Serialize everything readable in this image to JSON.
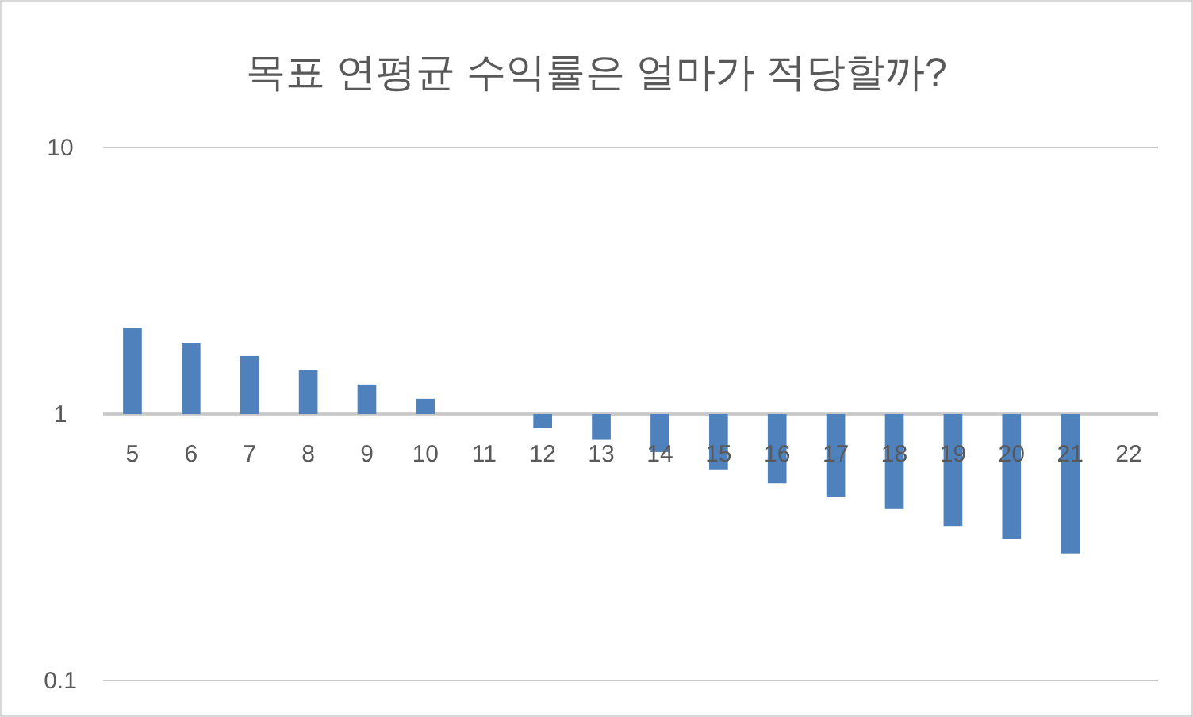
{
  "chart_data": {
    "type": "bar",
    "title": "목표 연평균 수익률은 얼마가 적당할까?",
    "categories": [
      "5",
      "6",
      "7",
      "8",
      "9",
      "10",
      "11",
      "12",
      "13",
      "14",
      "15",
      "16",
      "17",
      "18",
      "19",
      "20",
      "21",
      "22"
    ],
    "values": [
      1.11,
      0.84,
      0.65,
      0.46,
      0.29,
      0.14,
      null,
      -0.11,
      -0.2,
      -0.28,
      -0.38,
      -0.45,
      -0.51,
      -0.56,
      -0.62,
      -0.66,
      -0.7,
      null
    ],
    "base": [
      1,
      1,
      1,
      1,
      1,
      1,
      null,
      1,
      1,
      1,
      1,
      1,
      1,
      1,
      1,
      1,
      1,
      null
    ],
    "color": "#4f81bd",
    "log": true,
    "ylim": [
      0.1,
      10
    ],
    "yticks": [
      0.1,
      1,
      10
    ],
    "grid": "y"
  }
}
